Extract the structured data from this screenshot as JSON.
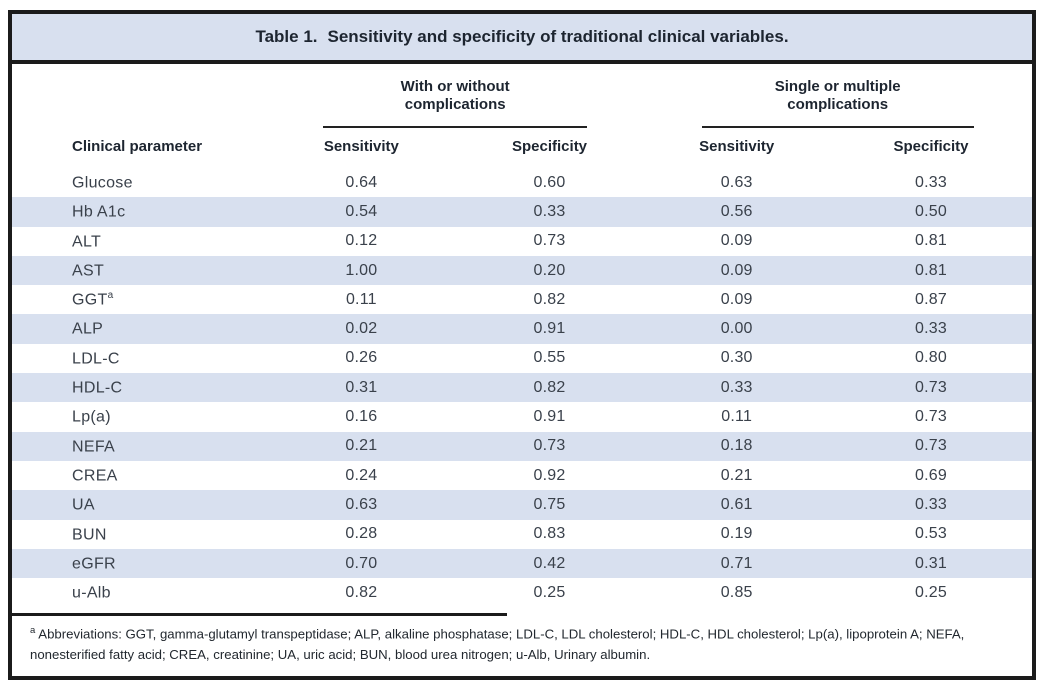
{
  "title": {
    "label": "Table 1.",
    "text": "Sensitivity and specificity of traditional clinical variables."
  },
  "table": {
    "param_header": "Clinical parameter",
    "groups": [
      {
        "title": "With or without complications",
        "subheaders": [
          "Sensitivity",
          "Specificity"
        ]
      },
      {
        "title": "Single or multiple complications",
        "subheaders": [
          "Sensitivity",
          "Specificity"
        ]
      }
    ],
    "rows": [
      {
        "param": "Glucose",
        "sup": "",
        "values": [
          "0.64",
          "0.60",
          "0.63",
          "0.33"
        ]
      },
      {
        "param": "Hb A1c",
        "sup": "",
        "values": [
          "0.54",
          "0.33",
          "0.56",
          "0.50"
        ]
      },
      {
        "param": "ALT",
        "sup": "",
        "values": [
          "0.12",
          "0.73",
          "0.09",
          "0.81"
        ]
      },
      {
        "param": "AST",
        "sup": "",
        "values": [
          "1.00",
          "0.20",
          "0.09",
          "0.81"
        ]
      },
      {
        "param": "GGT",
        "sup": "a",
        "values": [
          "0.11",
          "0.82",
          "0.09",
          "0.87"
        ]
      },
      {
        "param": "ALP",
        "sup": "",
        "values": [
          "0.02",
          "0.91",
          "0.00",
          "0.33"
        ]
      },
      {
        "param": "LDL-C",
        "sup": "",
        "values": [
          "0.26",
          "0.55",
          "0.30",
          "0.80"
        ]
      },
      {
        "param": "HDL-C",
        "sup": "",
        "values": [
          "0.31",
          "0.82",
          "0.33",
          "0.73"
        ]
      },
      {
        "param": "Lp(a)",
        "sup": "",
        "values": [
          "0.16",
          "0.91",
          "0.11",
          "0.73"
        ]
      },
      {
        "param": "NEFA",
        "sup": "",
        "values": [
          "0.21",
          "0.73",
          "0.18",
          "0.73"
        ]
      },
      {
        "param": "CREA",
        "sup": "",
        "values": [
          "0.24",
          "0.92",
          "0.21",
          "0.69"
        ]
      },
      {
        "param": "UA",
        "sup": "",
        "values": [
          "0.63",
          "0.75",
          "0.61",
          "0.33"
        ]
      },
      {
        "param": "BUN",
        "sup": "",
        "values": [
          "0.28",
          "0.83",
          "0.19",
          "0.53"
        ]
      },
      {
        "param": "eGFR",
        "sup": "",
        "values": [
          "0.70",
          "0.42",
          "0.71",
          "0.31"
        ]
      },
      {
        "param": "u-Alb",
        "sup": "",
        "values": [
          "0.82",
          "0.25",
          "0.85",
          "0.25"
        ]
      }
    ]
  },
  "footnote": {
    "marker": "a",
    "text": "Abbreviations: GGT, gamma-glutamyl transpeptidase; ALP, alkaline phosphatase; LDL-C, LDL cholesterol; HDL-C, HDL cholesterol; Lp(a), lipoprotein A; NEFA, nonesterified fatty acid; CREA, creatinine; UA, uric acid; BUN, blood urea nitrogen; u-Alb, Urinary albumin."
  },
  "colors": {
    "stripe": "#d8e0ef",
    "border": "#1b1b1b",
    "header_text": "#1d2530",
    "body_text": "#3a414b"
  }
}
